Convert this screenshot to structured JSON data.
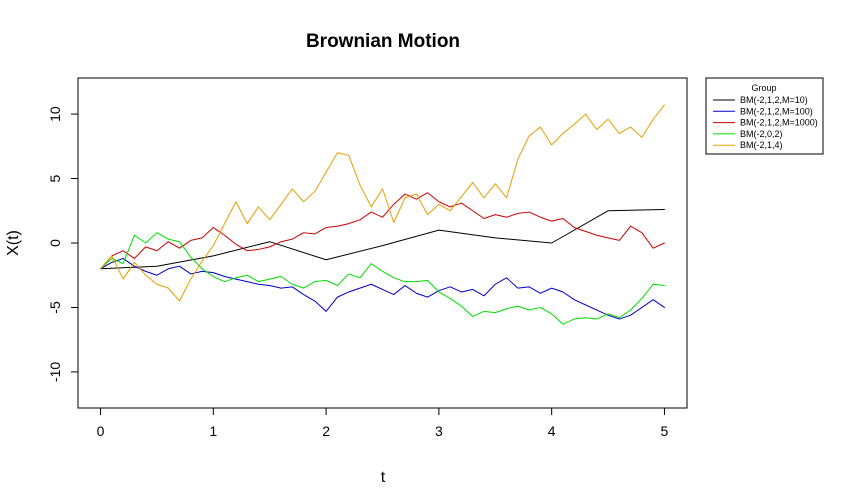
{
  "chart_data": {
    "type": "line",
    "title": "Brownian Motion",
    "xlabel": "t",
    "ylabel": "X(t)",
    "xlim": [
      -0.2,
      5.2
    ],
    "ylim": [
      -12.8,
      12.8
    ],
    "x_ticks": [
      0,
      1,
      2,
      3,
      4,
      5
    ],
    "y_ticks": [
      -10,
      -5,
      0,
      5,
      10
    ],
    "grid": false,
    "legend": {
      "title": "Group",
      "placement": "outside-top-right"
    },
    "series": [
      {
        "name": "BM(-2,1,2,M=10)",
        "color": "#000000",
        "x": [
          0,
          0.5,
          1,
          1.5,
          2,
          2.5,
          3,
          3.5,
          4,
          4.5,
          5
        ],
        "y": [
          -2.0,
          -1.8,
          -1.0,
          0.1,
          -1.3,
          -0.2,
          1.0,
          0.4,
          0.0,
          2.5,
          2.6
        ]
      },
      {
        "name": "BM(-2,1,2,M=100)",
        "color": "#0000cc",
        "x": [
          0,
          0.1,
          0.2,
          0.3,
          0.4,
          0.5,
          0.6,
          0.7,
          0.8,
          0.9,
          1.0,
          1.1,
          1.2,
          1.3,
          1.4,
          1.5,
          1.6,
          1.7,
          1.8,
          1.9,
          2.0,
          2.1,
          2.2,
          2.3,
          2.4,
          2.5,
          2.6,
          2.7,
          2.8,
          2.9,
          3.0,
          3.1,
          3.2,
          3.3,
          3.4,
          3.5,
          3.6,
          3.7,
          3.8,
          3.9,
          4.0,
          4.1,
          4.2,
          4.3,
          4.4,
          4.5,
          4.6,
          4.7,
          4.8,
          4.9,
          5.0
        ],
        "y": [
          -2.0,
          -1.5,
          -1.2,
          -1.8,
          -2.2,
          -2.5,
          -2.0,
          -1.8,
          -2.4,
          -2.2,
          -2.3,
          -2.6,
          -2.8,
          -3.0,
          -3.2,
          -3.3,
          -3.5,
          -3.4,
          -4.0,
          -4.5,
          -5.3,
          -4.2,
          -3.8,
          -3.5,
          -3.2,
          -3.6,
          -4.0,
          -3.3,
          -3.9,
          -4.2,
          -3.7,
          -3.4,
          -3.8,
          -3.6,
          -4.1,
          -3.2,
          -2.7,
          -3.5,
          -3.4,
          -3.9,
          -3.5,
          -3.8,
          -4.4,
          -4.8,
          -5.2,
          -5.6,
          -5.9,
          -5.6,
          -5.0,
          -4.4,
          -5.0
        ]
      },
      {
        "name": "BM(-2,1,2,M=1000)",
        "color": "#cc0000",
        "x": [
          0,
          0.1,
          0.2,
          0.3,
          0.4,
          0.5,
          0.6,
          0.7,
          0.8,
          0.9,
          1.0,
          1.1,
          1.2,
          1.3,
          1.4,
          1.5,
          1.6,
          1.7,
          1.8,
          1.9,
          2.0,
          2.1,
          2.2,
          2.3,
          2.4,
          2.5,
          2.6,
          2.7,
          2.8,
          2.9,
          3.0,
          3.1,
          3.2,
          3.3,
          3.4,
          3.5,
          3.6,
          3.7,
          3.8,
          3.9,
          4.0,
          4.1,
          4.2,
          4.3,
          4.4,
          4.5,
          4.6,
          4.7,
          4.8,
          4.9,
          5.0
        ],
        "y": [
          -2.0,
          -1.0,
          -0.6,
          -1.2,
          -0.3,
          -0.6,
          0.1,
          -0.4,
          0.2,
          0.4,
          1.2,
          0.6,
          -0.1,
          -0.6,
          -0.5,
          -0.3,
          0.1,
          0.3,
          0.8,
          0.7,
          1.2,
          1.3,
          1.5,
          1.8,
          2.4,
          2.0,
          3.0,
          3.8,
          3.4,
          3.9,
          3.2,
          2.8,
          3.1,
          2.5,
          1.9,
          2.2,
          2.0,
          2.3,
          2.4,
          2.0,
          1.7,
          1.9,
          1.2,
          0.9,
          0.6,
          0.4,
          0.2,
          1.3,
          0.8,
          -0.4,
          0.0
        ]
      },
      {
        "name": "BM(-2,0,2)",
        "color": "#00dd00",
        "x": [
          0,
          0.1,
          0.2,
          0.3,
          0.4,
          0.5,
          0.6,
          0.7,
          0.8,
          0.9,
          1.0,
          1.1,
          1.2,
          1.3,
          1.4,
          1.5,
          1.6,
          1.7,
          1.8,
          1.9,
          2.0,
          2.1,
          2.2,
          2.3,
          2.4,
          2.5,
          2.6,
          2.7,
          2.8,
          2.9,
          3.0,
          3.1,
          3.2,
          3.3,
          3.4,
          3.5,
          3.6,
          3.7,
          3.8,
          3.9,
          4.0,
          4.1,
          4.2,
          4.3,
          4.4,
          4.5,
          4.6,
          4.7,
          4.8,
          4.9,
          5.0
        ],
        "y": [
          -2.0,
          -1.2,
          -1.6,
          0.6,
          0.0,
          0.8,
          0.3,
          0.1,
          -1.1,
          -2.0,
          -2.6,
          -3.0,
          -2.7,
          -2.5,
          -3.0,
          -2.8,
          -2.6,
          -3.2,
          -3.5,
          -3.0,
          -2.9,
          -3.3,
          -2.4,
          -2.7,
          -1.6,
          -2.2,
          -2.7,
          -3.0,
          -3.0,
          -2.9,
          -3.8,
          -4.3,
          -4.9,
          -5.7,
          -5.3,
          -5.4,
          -5.1,
          -4.9,
          -5.2,
          -5.0,
          -5.5,
          -6.3,
          -5.9,
          -5.8,
          -5.9,
          -5.5,
          -5.8,
          -5.2,
          -4.3,
          -3.2,
          -3.3
        ]
      },
      {
        "name": "BM(-2,1,4)",
        "color": "#e69f00",
        "x": [
          0,
          0.1,
          0.2,
          0.3,
          0.4,
          0.5,
          0.6,
          0.7,
          0.8,
          0.9,
          1.0,
          1.1,
          1.2,
          1.3,
          1.4,
          1.5,
          1.6,
          1.7,
          1.8,
          1.9,
          2.0,
          2.1,
          2.2,
          2.3,
          2.4,
          2.5,
          2.6,
          2.7,
          2.8,
          2.9,
          3.0,
          3.1,
          3.2,
          3.3,
          3.4,
          3.5,
          3.6,
          3.7,
          3.8,
          3.9,
          4.0,
          4.1,
          4.2,
          4.3,
          4.4,
          4.5,
          4.6,
          4.7,
          4.8,
          4.9,
          5.0
        ],
        "y": [
          -2.0,
          -1.0,
          -2.8,
          -1.5,
          -2.5,
          -3.2,
          -3.5,
          -4.5,
          -2.8,
          -1.4,
          -0.2,
          1.5,
          3.2,
          1.5,
          2.8,
          1.8,
          3.0,
          4.2,
          3.2,
          4.0,
          5.5,
          7.0,
          6.8,
          4.5,
          2.8,
          4.2,
          1.6,
          3.5,
          3.8,
          2.2,
          3.0,
          2.5,
          3.6,
          4.7,
          3.5,
          4.6,
          3.5,
          6.5,
          8.3,
          9.0,
          7.6,
          8.5,
          9.2,
          10.0,
          8.8,
          9.6,
          8.5,
          9.0,
          8.2,
          9.6,
          10.7
        ]
      }
    ]
  }
}
